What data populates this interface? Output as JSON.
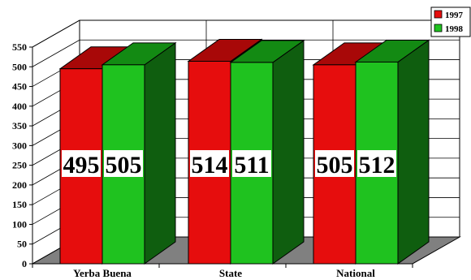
{
  "chart_data": {
    "type": "bar",
    "title": "",
    "xlabel": "",
    "ylabel": "",
    "ylim": [
      0,
      550
    ],
    "yticks": [
      0,
      50,
      100,
      150,
      200,
      250,
      300,
      350,
      400,
      450,
      500,
      550
    ],
    "categories": [
      "Yerba Buena",
      "State",
      "National"
    ],
    "series": [
      {
        "name": "1997",
        "values": [
          495,
          514,
          505
        ]
      },
      {
        "name": "1998",
        "values": [
          505,
          511,
          512
        ]
      }
    ],
    "grid": true,
    "legend": "top-right",
    "three_d": true
  },
  "colors": {
    "series": [
      {
        "front": "#e60d0d",
        "top": "#a80808",
        "side": "#8a0606"
      },
      {
        "front": "#1fc21f",
        "top": "#138a13",
        "side": "#0f5e0f"
      }
    ],
    "floor": "#808080",
    "wall": "#ffffff",
    "label_box": "#ffffff"
  }
}
